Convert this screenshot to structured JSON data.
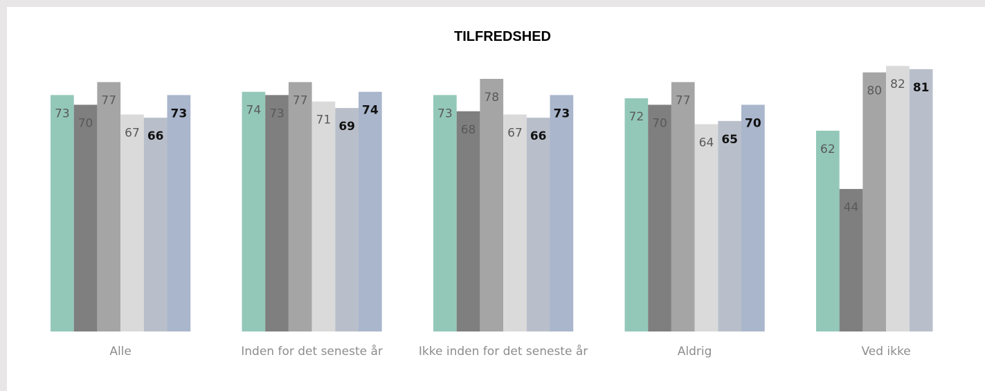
{
  "chart_data": {
    "type": "bar",
    "title": "TILFREDSHED",
    "categories": [
      "Alle",
      "Inden for det seneste år",
      "Ikke inden for det seneste år",
      "Aldrig",
      "Ved ikke"
    ],
    "series": [
      {
        "color": "#93c8b9",
        "values": [
          73,
          74,
          73,
          72,
          62
        ]
      },
      {
        "color": "#7f7f7f",
        "values": [
          70,
          73,
          68,
          70,
          44
        ]
      },
      {
        "color": "#a5a5a5",
        "values": [
          77,
          77,
          78,
          77,
          80
        ]
      },
      {
        "color": "#dadada",
        "values": [
          67,
          71,
          67,
          64,
          82
        ]
      },
      {
        "color": "#b9bfca",
        "values": [
          66,
          69,
          66,
          65,
          81
        ]
      },
      {
        "color": "#a9b6cc",
        "values": [
          73,
          74,
          73,
          70,
          null
        ]
      }
    ],
    "ylim": [
      0,
      100
    ],
    "grid": false,
    "legend": false
  }
}
